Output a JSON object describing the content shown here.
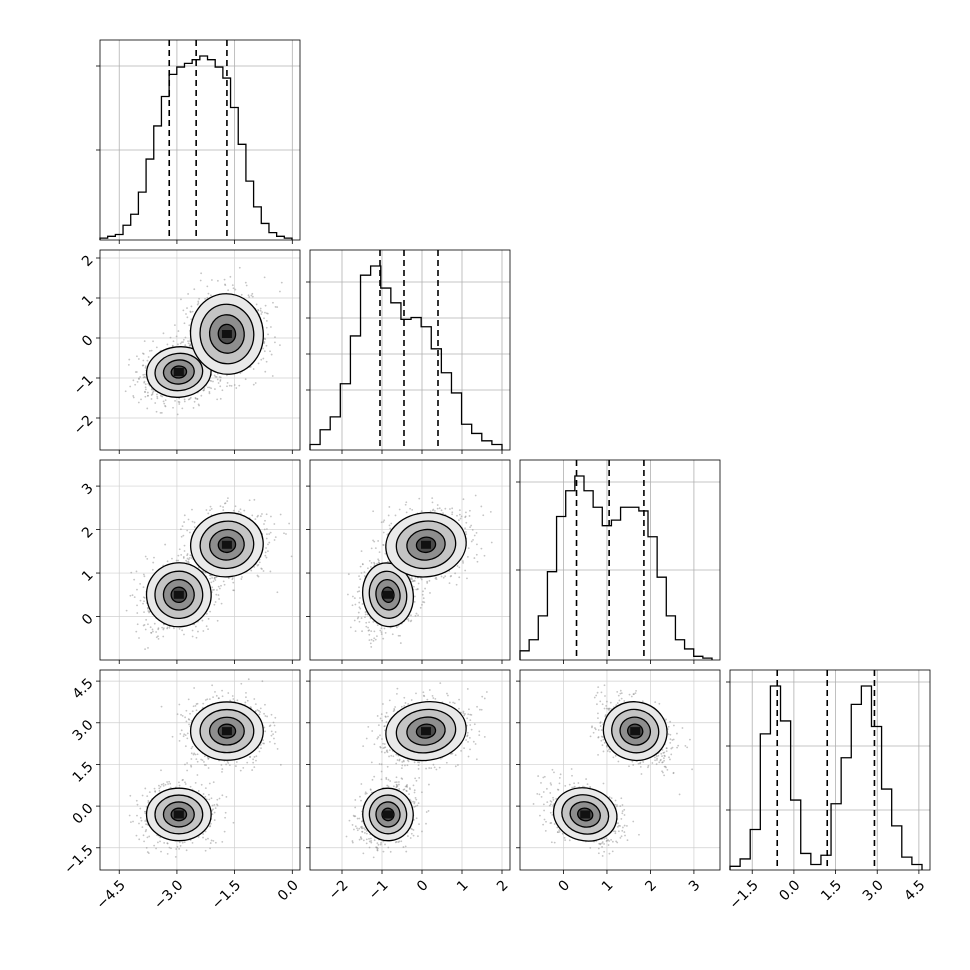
{
  "chart_data": {
    "type": "corner",
    "parameters": 4,
    "ranges": [
      [
        -5.0,
        0.2
      ],
      [
        -2.8,
        2.2
      ],
      [
        -1.0,
        3.6
      ],
      [
        -2.3,
        4.9
      ]
    ],
    "ticks": [
      {
        "values": [
          -4.5,
          -3.0,
          -1.5,
          0.0
        ],
        "labels": [
          "−4.5",
          "−3.0",
          "−1.5",
          "0.0"
        ]
      },
      {
        "values": [
          -2,
          -1,
          0,
          1,
          2
        ],
        "labels": [
          "−2",
          "−1",
          "0",
          "1",
          "2"
        ]
      },
      {
        "values": [
          0,
          1,
          2,
          3
        ],
        "labels": [
          "0",
          "1",
          "2",
          "3"
        ]
      },
      {
        "values": [
          -1.5,
          0.0,
          1.5,
          3.0,
          4.5
        ],
        "labels": [
          "−1.5",
          "0.0",
          "1.5",
          "3.0",
          "4.5"
        ]
      }
    ],
    "quantiles": [
      [
        -3.2,
        -2.5,
        -1.7
      ],
      [
        -1.05,
        -0.45,
        0.4
      ],
      [
        0.3,
        1.05,
        1.85
      ],
      [
        -0.6,
        1.2,
        2.9
      ]
    ],
    "histograms": [
      [
        1,
        2,
        3,
        8,
        14,
        26,
        44,
        62,
        78,
        90,
        94,
        96,
        98,
        100,
        98,
        94,
        88,
        72,
        52,
        32,
        18,
        9,
        4,
        2,
        1
      ],
      [
        3,
        11,
        18,
        36,
        62,
        95,
        100,
        88,
        80,
        71,
        72,
        67,
        55,
        42,
        31,
        14,
        9,
        5,
        3
      ],
      [
        5,
        11,
        24,
        48,
        78,
        92,
        100,
        92,
        83,
        73,
        76,
        83,
        83,
        81,
        67,
        45,
        24,
        11,
        6,
        2,
        1
      ],
      [
        2,
        6,
        22,
        74,
        100,
        81,
        38,
        9,
        3,
        8,
        36,
        61,
        90,
        100,
        78,
        44,
        24,
        7,
        3
      ]
    ],
    "histogram_y_ticks": [
      [
        0.45,
        0.87
      ],
      [
        0.3,
        0.48,
        0.66,
        0.84
      ],
      [
        0.45,
        0.89
      ],
      [
        0.3,
        0.62,
        0.94
      ]
    ],
    "modes": [
      {
        "center": [
          -2.95,
          -0.85,
          0.5,
          -0.3
        ],
        "sd": [
          0.4,
          0.3,
          0.35,
          0.45
        ]
      },
      {
        "center": [
          -1.7,
          0.1,
          1.65,
          2.7
        ],
        "sd": [
          0.45,
          0.48,
          0.35,
          0.5
        ]
      }
    ],
    "contour_levels": [
      0.12,
      0.32,
      0.6,
      0.85
    ],
    "grid": true
  }
}
